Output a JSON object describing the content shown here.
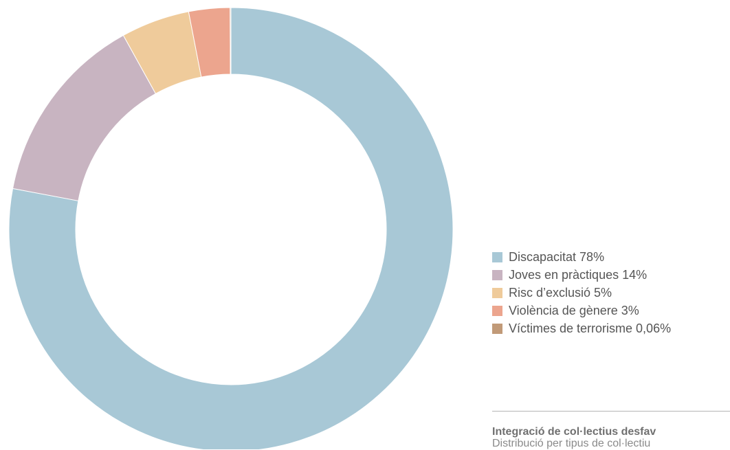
{
  "chart_data": {
    "type": "pie",
    "variant": "donut",
    "title": "Integració de col·lectius desfav",
    "subtitle": "Distribució per tipus de col·lectiu",
    "legend_position": "right",
    "categories": [
      "Discapacitat",
      "Joves en pràctiques",
      "Risc d’exclusió",
      "Violència de gènere",
      "Víctimes de terrorisme"
    ],
    "values": [
      78,
      14,
      5,
      3,
      0.06
    ],
    "value_labels": [
      "78%",
      "14%",
      "5%",
      "3%",
      "0,06%"
    ],
    "colors": [
      "#a8c8d6",
      "#c8b4c1",
      "#efcb9b",
      "#eca58e",
      "#c19a78"
    ]
  },
  "legend": [
    {
      "label": "Discapacitat 78%"
    },
    {
      "label": "Joves en pràctiques 14%"
    },
    {
      "label": "Risc d’exclusió 5%"
    },
    {
      "label": "Violència de gènere 3%"
    },
    {
      "label": "Víctimes de terrorisme 0,06%"
    }
  ]
}
